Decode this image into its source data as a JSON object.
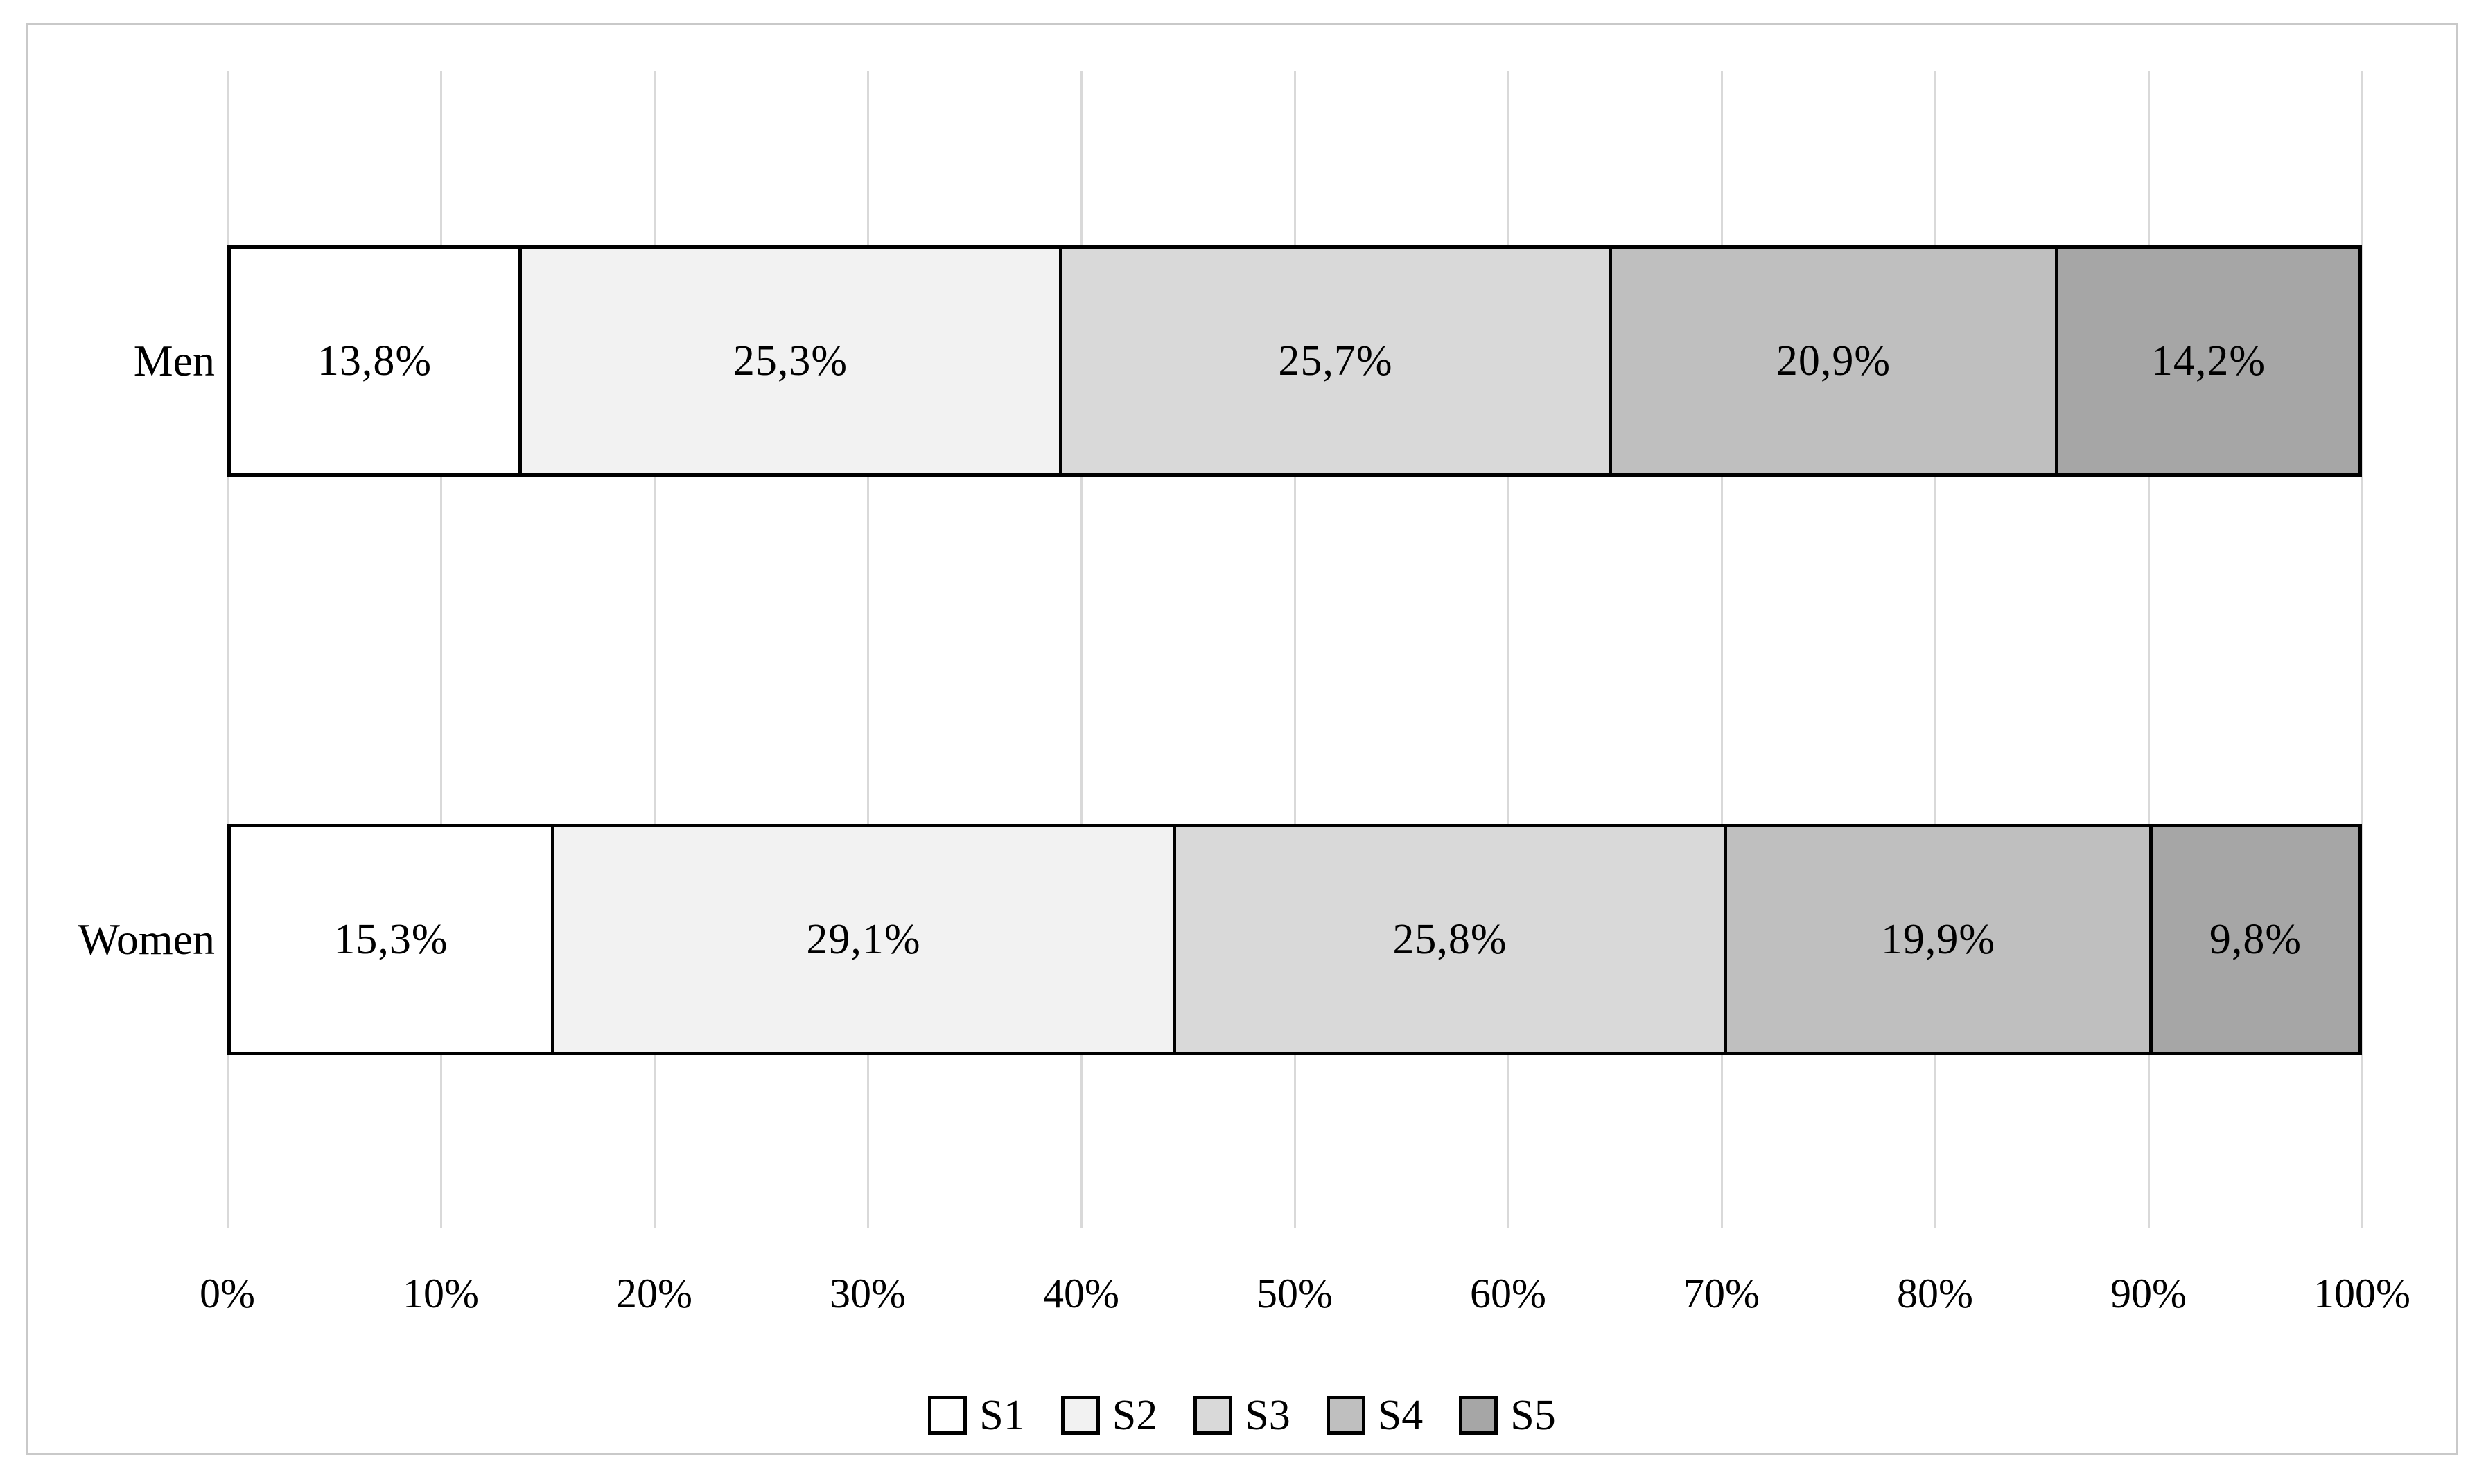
{
  "chart_data": {
    "type": "bar",
    "orientation": "horizontal",
    "stacked": true,
    "unit": "%",
    "categories": [
      "Men",
      "Women"
    ],
    "series": [
      {
        "name": "S1",
        "color": "#ffffff",
        "values": [
          13.8,
          15.3
        ],
        "labels": [
          "13,8%",
          "15,3%"
        ]
      },
      {
        "name": "S2",
        "color": "#f2f2f2",
        "values": [
          25.3,
          29.1
        ],
        "labels": [
          "25,3%",
          "29,1%"
        ]
      },
      {
        "name": "S3",
        "color": "#d9d9d9",
        "values": [
          25.7,
          25.8
        ],
        "labels": [
          "25,7%",
          "25,8%"
        ]
      },
      {
        "name": "S4",
        "color": "#bfbfbf",
        "values": [
          20.9,
          19.9
        ],
        "labels": [
          "20,9%",
          "19,9%"
        ]
      },
      {
        "name": "S5",
        "color": "#a6a6a6",
        "values": [
          14.2,
          9.8
        ],
        "labels": [
          "14,2%",
          "9,8%"
        ]
      }
    ],
    "x_ticks": [
      "0%",
      "10%",
      "20%",
      "30%",
      "40%",
      "50%",
      "60%",
      "70%",
      "80%",
      "90%",
      "100%"
    ],
    "xlim": [
      0,
      100
    ],
    "title": "",
    "xlabel": "",
    "ylabel": "",
    "grid": "vertical",
    "gridline_color": "#d9d9d9",
    "bar_border_color": "#000000",
    "frame_border_color": "#c9c9c9",
    "legend_position": "bottom",
    "legend_labels": [
      "S1",
      "S2",
      "S3",
      "S4",
      "S5"
    ]
  }
}
